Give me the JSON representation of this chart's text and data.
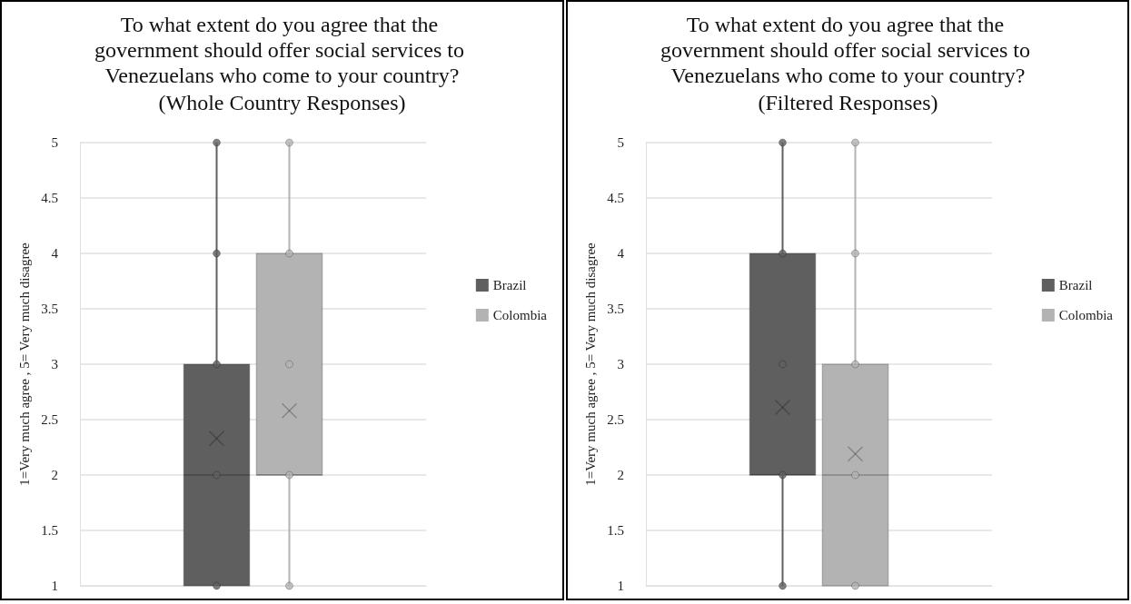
{
  "chart_data": [
    {
      "type": "box",
      "title": "To what extent do you agree that the government should offer social services to Venezuelans who come to your country?",
      "subtitle": "(Whole Country Responses)",
      "ylabel": "1=Very much agree , 5= Very much disagree",
      "categories": [
        null
      ],
      "ylim": [
        1,
        5
      ],
      "yticks": [
        1,
        1.5,
        2,
        2.5,
        3,
        3.5,
        4,
        4.5,
        5
      ],
      "grid": "y",
      "legend": "right",
      "tick_labels": "y",
      "marker": "circle",
      "series": [
        {
          "name": "Brazil",
          "color": "#5f5f5f",
          "boxes": [
            {
              "low": 1,
              "q1": 1,
              "median": 2,
              "q3": 3,
              "high": 5,
              "mean": 2.33
            }
          ]
        },
        {
          "name": "Colombia",
          "color": "#b3b3b3",
          "boxes": [
            {
              "low": 1,
              "q1": 2,
              "median": 2,
              "q3": 4,
              "high": 5,
              "mean": 2.58
            }
          ]
        },
        {
          "type": "scatter",
          "color": "#5f5f5f",
          "x": [
            null,
            null,
            null,
            null,
            null
          ],
          "values": [
            1,
            2,
            3,
            4,
            5
          ]
        },
        {
          "type": "scatter",
          "color": "#b3b3b3",
          "x": [
            null,
            null,
            null,
            null,
            null
          ],
          "values": [
            1,
            2,
            3,
            4,
            5
          ]
        }
      ]
    },
    {
      "type": "box",
      "title": "To what extent do you agree that the government should offer social services to Venezuelans who come to your country?",
      "subtitle": "(Filtered Responses)",
      "ylabel": "1=Very much agree , 5= Very much disagree",
      "categories": [
        null
      ],
      "ylim": [
        1,
        5
      ],
      "yticks": [
        1,
        1.5,
        2,
        2.5,
        3,
        3.5,
        4,
        4.5,
        5
      ],
      "grid": "y",
      "legend": "right",
      "tick_labels": "y",
      "marker": "circle",
      "series": [
        {
          "name": "Brazil",
          "color": "#5f5f5f",
          "boxes": [
            {
              "low": 1,
              "q1": 2,
              "median": 2,
              "q3": 4,
              "high": 5,
              "mean": 2.61
            }
          ]
        },
        {
          "name": "Colombia",
          "color": "#b3b3b3",
          "boxes": [
            {
              "low": 1,
              "q1": 1,
              "median": 2,
              "q3": 3,
              "high": 5,
              "mean": 2.19
            }
          ]
        },
        {
          "type": "scatter",
          "color": "#5f5f5f",
          "x": [
            null,
            null,
            null,
            null,
            null
          ],
          "values": [
            1,
            2,
            3,
            4,
            5
          ]
        },
        {
          "type": "scatter",
          "color": "#b3b3b3",
          "x": [
            null,
            null,
            null,
            null,
            null
          ],
          "values": [
            1,
            2,
            3,
            4,
            5
          ]
        }
      ]
    }
  ]
}
